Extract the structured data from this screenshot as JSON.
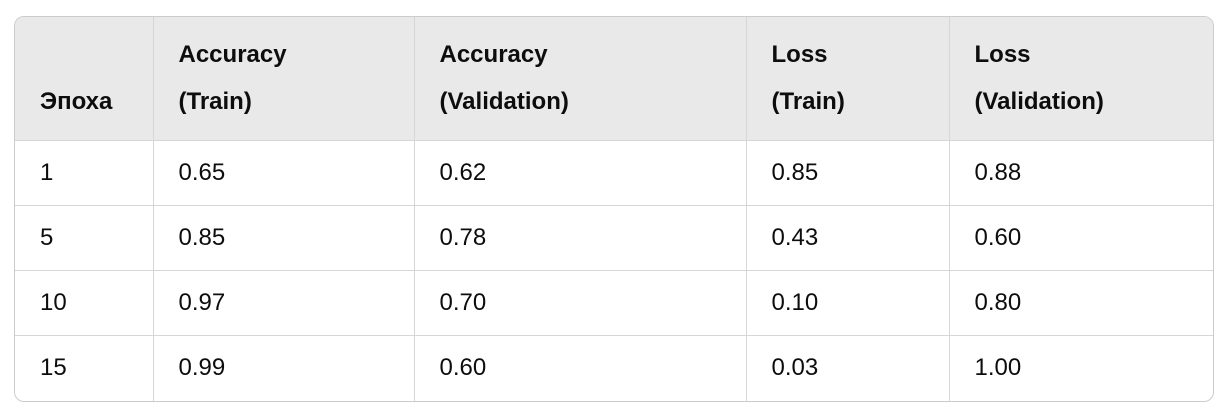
{
  "table": {
    "columns": [
      {
        "title": "Эпоха",
        "subtitle": ""
      },
      {
        "title": "Accuracy",
        "subtitle": "(Train)"
      },
      {
        "title": "Accuracy",
        "subtitle": "(Validation)"
      },
      {
        "title": "Loss",
        "subtitle": "(Train)"
      },
      {
        "title": "Loss",
        "subtitle": "(Validation)"
      }
    ],
    "rows": [
      [
        "1",
        "0.65",
        "0.62",
        "0.85",
        "0.88"
      ],
      [
        "5",
        "0.85",
        "0.78",
        "0.43",
        "0.60"
      ],
      [
        "10",
        "0.97",
        "0.70",
        "0.10",
        "0.80"
      ],
      [
        "15",
        "0.99",
        "0.60",
        "0.03",
        "1.00"
      ]
    ]
  },
  "colors": {
    "header_bg": "#e9e9e9",
    "grid_border": "#d6d6d6",
    "outer_border": "#cccccc",
    "text": "#0d0d0d",
    "page_bg": "#ffffff"
  }
}
